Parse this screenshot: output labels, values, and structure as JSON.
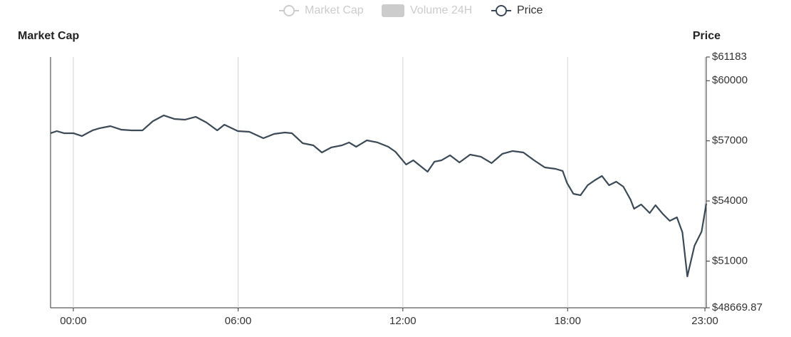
{
  "chart_data": {
    "type": "line",
    "legend": [
      {
        "name": "Market Cap",
        "color": "#cccccc",
        "icon": "line"
      },
      {
        "name": "Volume 24H",
        "color": "#cccccc",
        "icon": "rect"
      }
    ],
    "y_left_title": "Market Cap",
    "y_title": "Price",
    "series": [
      {
        "name": "Price",
        "color": "#3b4a56",
        "x": [
          -0.83,
          -0.6,
          -0.34,
          0,
          0.31,
          0.7,
          0.96,
          1.35,
          1.74,
          2.13,
          2.52,
          2.9,
          3.29,
          3.68,
          4.07,
          4.46,
          4.85,
          5.24,
          5.5,
          5.99,
          6.41,
          6.92,
          7.31,
          7.7,
          7.96,
          8.35,
          8.74,
          9.05,
          9.39,
          9.78,
          10.04,
          10.3,
          10.69,
          11.08,
          11.47,
          11.73,
          12.12,
          12.38,
          12.64,
          12.9,
          13.15,
          13.41,
          13.72,
          14.06,
          14.45,
          14.84,
          15.23,
          15.62,
          16.0,
          16.39,
          16.78,
          17.17,
          17.56,
          17.82,
          17.98,
          18.21,
          18.47,
          18.73,
          18.99,
          19.25,
          19.51,
          19.77,
          20.03,
          20.29,
          20.42,
          20.68,
          20.99,
          21.2,
          21.46,
          21.72,
          21.98,
          22.18,
          22.36,
          22.62,
          22.88,
          23.05
        ],
        "values": [
          57380,
          57486,
          57380,
          57380,
          57238,
          57522,
          57629,
          57735,
          57558,
          57522,
          57522,
          57984,
          58269,
          58091,
          58055,
          58197,
          57913,
          57522,
          57806,
          57486,
          57451,
          57131,
          57344,
          57415,
          57380,
          56882,
          56775,
          56420,
          56669,
          56775,
          56918,
          56704,
          57024,
          56918,
          56704,
          56455,
          55816,
          56029,
          55744,
          55460,
          55958,
          56029,
          56278,
          55922,
          56313,
          56207,
          55887,
          56349,
          56491,
          56420,
          56029,
          55673,
          55602,
          55496,
          54891,
          54358,
          54287,
          54785,
          55033,
          55247,
          54785,
          54962,
          54714,
          54074,
          53611,
          53825,
          53398,
          53789,
          53363,
          53007,
          53185,
          52438,
          50234,
          51763,
          52474,
          53860
        ]
      }
    ],
    "xlim": [
      -0.83,
      23.05
    ],
    "xticks": [
      {
        "value": 0,
        "label": "00:00"
      },
      {
        "value": 6,
        "label": "06:00"
      },
      {
        "value": 12,
        "label": "12:00"
      },
      {
        "value": 18,
        "label": "18:00"
      },
      {
        "value": 23,
        "label": "23:00"
      }
    ],
    "ylim": [
      48669.87,
      61183
    ],
    "yticks": [
      {
        "value": 48669.87,
        "label": "$48669.87"
      },
      {
        "value": 51000,
        "label": "$51000"
      },
      {
        "value": 54000,
        "label": "$54000"
      },
      {
        "value": 57000,
        "label": "$57000"
      },
      {
        "value": 60000,
        "label": "$60000"
      },
      {
        "value": 61183,
        "label": "$61183"
      }
    ],
    "grid": true
  }
}
